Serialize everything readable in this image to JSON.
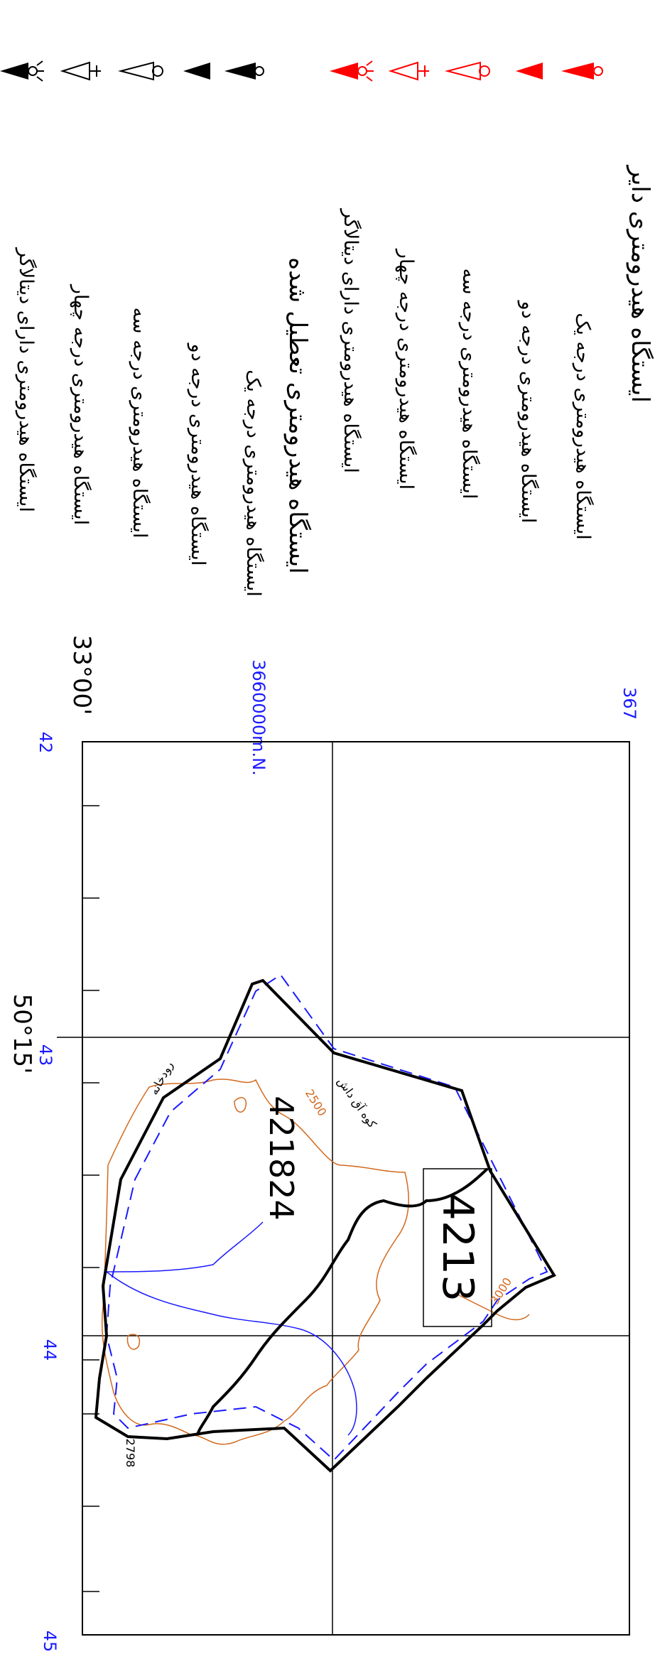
{
  "legend": {
    "items": [
      "ایستگاه هیدرومتری دایر",
      "ایستگاه هیدرومتری درجه یک",
      "ایستگاه هیدرومتری درجه دو",
      "ایستگاه هیدرومتری درجه سه",
      "ایستگاه هیدرومتری درجه چهار",
      "ایستگاه هیدرومتری دارای دیتالاگر",
      "ایستگاه هیدرومتری تعطیل شده",
      "ایستگاه هیدرومتری درجه یک",
      "ایستگاه هیدرومتری درجه دو",
      "ایستگاه هیدرومتری درجه سه",
      "ایستگاه هیدرومتری درجه چهار",
      "ایستگاه هیدرومتری دارای دیتالاگر"
    ]
  },
  "colors": {
    "active_symbol": "#ff0000",
    "closed_symbol": "#000000",
    "grid_label": "#1a1aff",
    "contour": "#d2691e",
    "river": "#1a1aff",
    "boundary": "#000000"
  },
  "grid": {
    "northing_label": "3660000m.N.",
    "top_right_label": "367",
    "easting_labels": [
      "42",
      "43",
      "44",
      "45"
    ]
  },
  "coordinates": {
    "latitude": "33°00'",
    "longitude": "50°15'"
  },
  "basins": {
    "main_code": "421824",
    "sub_code": "4213"
  },
  "labels": {
    "mountain": "کوه آق داش",
    "river": "رودخانه",
    "elevation_point": "2798",
    "contour_2500": "2500",
    "contour_3000": "3000"
  }
}
